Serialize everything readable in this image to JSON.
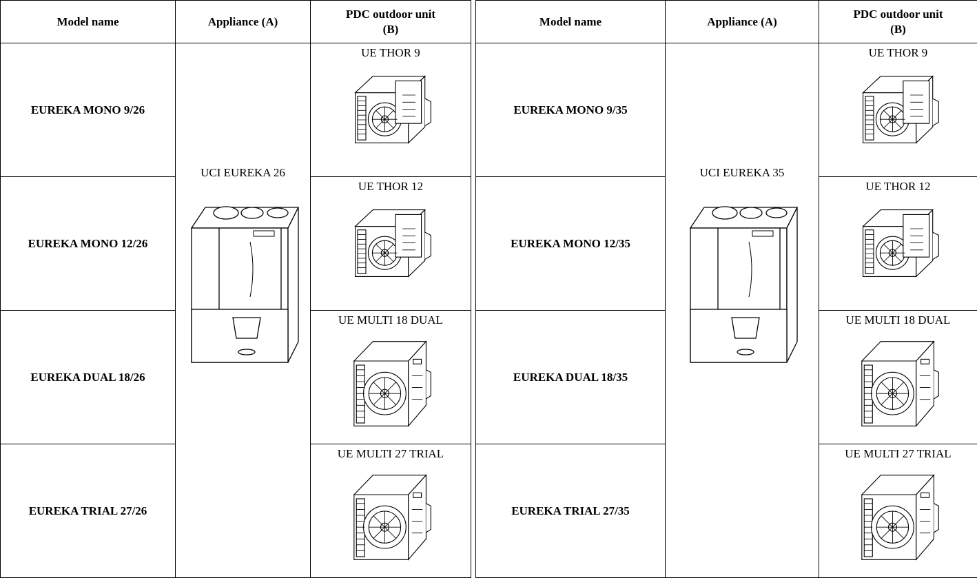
{
  "tables": [
    {
      "headers": [
        "Model name",
        "Appliance (A)",
        "PDC outdoor unit (B)"
      ],
      "appliance": "UCI EUREKA 26",
      "rows": [
        {
          "model": "EUREKA MONO 9/26",
          "outdoor_unit": "UE THOR 9"
        },
        {
          "model": "EUREKA MONO 12/26",
          "outdoor_unit": "UE THOR 12"
        },
        {
          "model": "EUREKA DUAL 18/26",
          "outdoor_unit": "UE MULTI 18 DUAL"
        },
        {
          "model": "EUREKA TRIAL 27/26",
          "outdoor_unit": "UE MULTI 27 TRIAL"
        }
      ]
    },
    {
      "headers": [
        "Model name",
        "Appliance (A)",
        "PDC outdoor unit (B)"
      ],
      "appliance": "UCI EUREKA 35",
      "rows": [
        {
          "model": "EUREKA MONO 9/35",
          "outdoor_unit": "UE THOR 9"
        },
        {
          "model": "EUREKA MONO 12/35",
          "outdoor_unit": "UE THOR 12"
        },
        {
          "model": "EUREKA DUAL 18/35",
          "outdoor_unit": "UE MULTI 18 DUAL"
        },
        {
          "model": "EUREKA TRIAL 27/35",
          "outdoor_unit": "UE MULTI 27 TRIAL"
        }
      ]
    }
  ]
}
